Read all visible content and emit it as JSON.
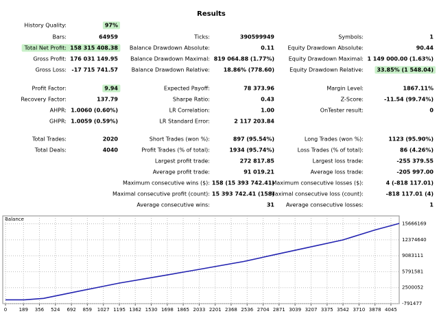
{
  "title": "Results",
  "table": {
    "rows": [
      [
        {
          "label": "History Quality:",
          "value": "97%",
          "value_hl": true
        },
        null,
        null
      ],
      [
        {
          "label": "Bars:",
          "value": "64959"
        },
        {
          "label": "Ticks:",
          "value": "390599949"
        },
        {
          "label": "Symbols:",
          "value": "1"
        }
      ],
      [
        {
          "label": "Total Net Profit:",
          "value": "158 315 408.38",
          "label_hl": true,
          "value_hl": true
        },
        {
          "label": "Balance Drawdown Absolute:",
          "value": "0.11"
        },
        {
          "label": "Equity Drawdown Absolute:",
          "value": "90.44"
        }
      ],
      [
        {
          "label": "Gross Profit:",
          "value": "176 031 149.95"
        },
        {
          "label": "Balance Drawdown Maximal:",
          "value": "819 064.88 (1.77%)"
        },
        {
          "label": "Equity Drawdown Maximal:",
          "value": "1 149 000.00 (1.63%)"
        }
      ],
      [
        {
          "label": "Gross Loss:",
          "value": "-17 715 741.57"
        },
        {
          "label": "Balance Drawdown Relative:",
          "value": "18.86% (778.60)"
        },
        {
          "label": "Equity Drawdown Relative:",
          "value": "33.85% (1 548.04)",
          "value_hl": true
        }
      ],
      [
        {
          "label": "Profit Factor:",
          "value": "9.94",
          "value_hl": true
        },
        {
          "label": "Expected Payoff:",
          "value": "78 373.96"
        },
        {
          "label": "Margin Level:",
          "value": "1867.11%"
        }
      ],
      [
        {
          "label": "Recovery Factor:",
          "value": "137.79"
        },
        {
          "label": "Sharpe Ratio:",
          "value": "0.43"
        },
        {
          "label": "Z-Score:",
          "value": "-11.54 (99.74%)"
        }
      ],
      [
        {
          "label": "AHPR:",
          "value": "1.0060 (0.60%)"
        },
        {
          "label": "LR Correlation:",
          "value": "1.00"
        },
        {
          "label": "OnTester result:",
          "value": "0"
        }
      ],
      [
        {
          "label": "GHPR:",
          "value": "1.0059 (0.59%)"
        },
        {
          "label": "LR Standard Error:",
          "value": "2 117 203.84"
        },
        null
      ],
      [
        {
          "label": "Total Trades:",
          "value": "2020"
        },
        {
          "label": "Short Trades (won %):",
          "value": "897 (95.54%)"
        },
        {
          "label": "Long Trades (won %):",
          "value": "1123 (95.90%)"
        }
      ],
      [
        {
          "label": "Total Deals:",
          "value": "4040"
        },
        {
          "label": "Profit Trades (% of total):",
          "value": "1934 (95.74%)"
        },
        {
          "label": "Loss Trades (% of total):",
          "value": "86 (4.26%)"
        }
      ],
      [
        null,
        {
          "label": "Largest profit trade:",
          "value": "272 817.85"
        },
        {
          "label": "Largest loss trade:",
          "value": "-255 379.55"
        }
      ],
      [
        null,
        {
          "label": "Average profit trade:",
          "value": "91 019.21"
        },
        {
          "label": "Average loss trade:",
          "value": "-205 997.00"
        }
      ],
      [
        null,
        {
          "label": "Maximum consecutive wins ($):",
          "value": "158 (15 393 742.41)"
        },
        {
          "label": "Maximum consecutive losses ($):",
          "value": "4 (-818 117.01)"
        }
      ],
      [
        null,
        {
          "label": "Maximal consecutive profit (count):",
          "value": "15 393 742.41 (158)"
        },
        {
          "label": "Maximal consecutive loss (count):",
          "value": "-818 117.01 (4)"
        }
      ],
      [
        null,
        {
          "label": "Average consecutive wins:",
          "value": "31"
        },
        {
          "label": "Average consecutive losses:",
          "value": "1"
        }
      ]
    ]
  },
  "chart_data": {
    "type": "line",
    "title": "Balance",
    "color": "#2222b0",
    "grid": true,
    "x": [
      0,
      200,
      400,
      700,
      1195,
      1600,
      2033,
      2500,
      2871,
      3200,
      3542,
      3878,
      4132
    ],
    "values": [
      0,
      0,
      300000,
      1500000,
      3450000,
      4800000,
      6280000,
      7900000,
      9500000,
      10900000,
      12350000,
      14400000,
      15750000
    ],
    "xlim": [
      0,
      4132
    ],
    "xticks": [
      0,
      189,
      356,
      524,
      692,
      859,
      1027,
      1195,
      1362,
      1530,
      1698,
      1865,
      2033,
      2201,
      2368,
      2536,
      2704,
      2871,
      3039,
      3207,
      3375,
      3542,
      3710,
      3878,
      4045
    ],
    "ylim": [
      -791477,
      17300000
    ],
    "yticks": [
      15666169,
      12374640,
      9083111,
      5791581,
      2500052,
      -791477
    ]
  }
}
